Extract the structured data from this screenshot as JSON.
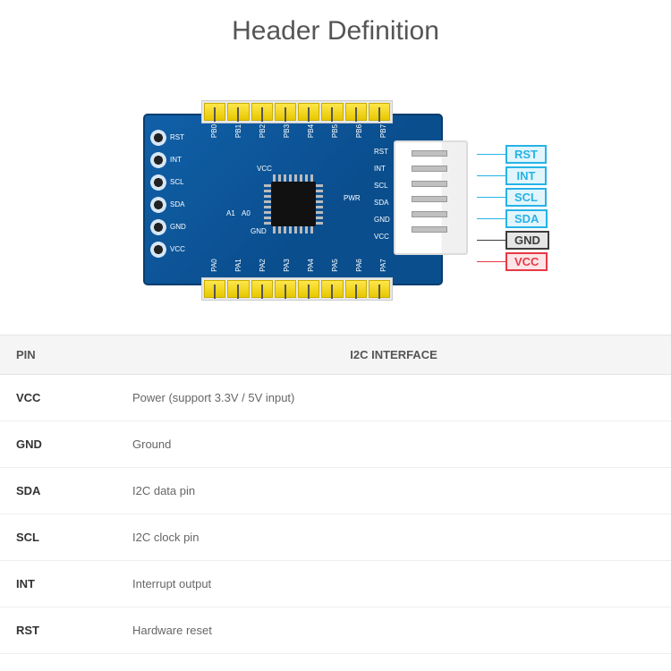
{
  "title": "Header Definition",
  "table": {
    "headers": {
      "pin": "PIN",
      "desc": "I2C INTERFACE"
    },
    "rows": [
      {
        "pin": "VCC",
        "desc": "Power (support 3.3V / 5V input)"
      },
      {
        "pin": "GND",
        "desc": "Ground"
      },
      {
        "pin": "SDA",
        "desc": "I2C data pin"
      },
      {
        "pin": "SCL",
        "desc": "I2C clock pin"
      },
      {
        "pin": "INT",
        "desc": "Interrupt output"
      },
      {
        "pin": "RST",
        "desc": "Hardware reset"
      }
    ]
  },
  "callouts": [
    {
      "label": "RST",
      "color": "#26b3e6"
    },
    {
      "label": "INT",
      "color": "#26b3e6"
    },
    {
      "label": "SCL",
      "color": "#26b3e6"
    },
    {
      "label": "SDA",
      "color": "#26b3e6"
    },
    {
      "label": "GND",
      "color": "#3c3c3c"
    },
    {
      "label": "VCC",
      "color": "#e63946"
    }
  ],
  "left_pins": [
    "RST",
    "INT",
    "SCL",
    "SDA",
    "GND",
    "VCC"
  ],
  "top_labels": [
    "PB0",
    "PB1",
    "PB2",
    "PB3",
    "PB4",
    "PB5",
    "PB6",
    "PB7"
  ],
  "bottom_labels": [
    "PA0",
    "PA1",
    "PA2",
    "PA3",
    "PA4",
    "PA5",
    "PA6",
    "PA7"
  ],
  "right_inner": [
    "RST",
    "INT",
    "SCL",
    "SDA",
    "GND",
    "VCC"
  ],
  "silk_misc": {
    "a0": "A0",
    "a1": "A1",
    "gnd": "GND",
    "vcc": "VCC",
    "pwr": "PWR"
  },
  "colors": {
    "pcb": "#0a4e8e",
    "header_yellow": "#ffe64b",
    "title_color": "#555555",
    "table_header_bg": "#f5f5f5"
  }
}
